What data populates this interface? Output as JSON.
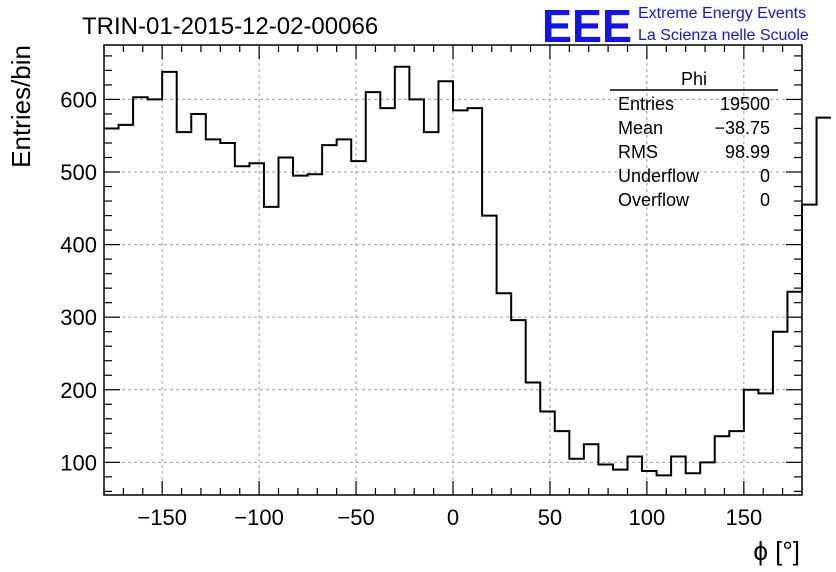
{
  "chart_data": {
    "type": "histogram",
    "title": "TRIN-01-2015-12-02-00066",
    "xlabel": "ϕ [°]",
    "ylabel": "Entries/bin",
    "xlim": [
      -180,
      180
    ],
    "ylim": [
      55,
      675
    ],
    "grid": true,
    "x_ticks": [
      -150,
      -100,
      -50,
      0,
      50,
      100,
      150
    ],
    "y_ticks": [
      100,
      200,
      300,
      400,
      500,
      600
    ],
    "x_tick_labels": [
      "−150",
      "−100",
      "−50",
      "0",
      "50",
      "100",
      "150"
    ],
    "y_tick_labels": [
      "100",
      "200",
      "300",
      "400",
      "500",
      "600"
    ],
    "bin_width": 7.5,
    "bin_start": -180,
    "values": [
      560,
      565,
      603,
      600,
      638,
      555,
      580,
      545,
      540,
      508,
      512,
      452,
      520,
      495,
      497,
      537,
      545,
      515,
      610,
      588,
      645,
      600,
      555,
      625,
      585,
      588,
      440,
      333,
      296,
      210,
      170,
      143,
      105,
      125,
      97,
      90,
      108,
      88,
      82,
      108,
      85,
      100,
      136,
      143,
      200,
      195,
      280,
      335,
      455,
      575
    ],
    "stats": {
      "name": "Phi",
      "rows": [
        {
          "label": "Entries",
          "value": "19500"
        },
        {
          "label": "Mean",
          "value": "−38.75"
        },
        {
          "label": "RMS",
          "value": "98.99"
        },
        {
          "label": "Underflow",
          "value": "0"
        },
        {
          "label": "Overflow",
          "value": "0"
        }
      ]
    }
  },
  "logo": {
    "mark": "EEE",
    "line1": "Extreme Energy Events",
    "line2": "La Scienza nelle Scuole",
    "color": "#1414e6"
  }
}
